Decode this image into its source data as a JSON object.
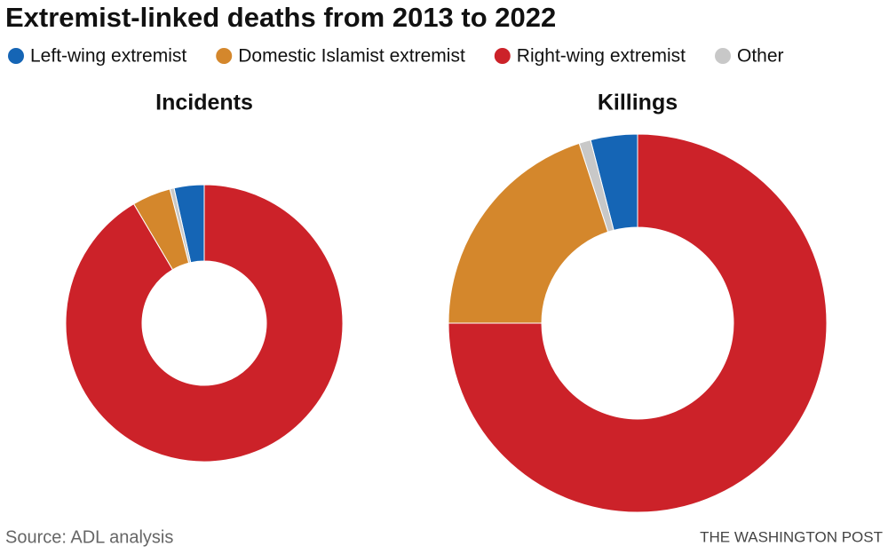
{
  "title": "Extremist-linked deaths from 2013 to 2022",
  "legend": [
    {
      "name": "Left-wing extremist",
      "color": "#1565b5"
    },
    {
      "name": "Domestic Islamist extremist",
      "color": "#d4872c"
    },
    {
      "name": "Right-wing extremist",
      "color": "#cc2229"
    },
    {
      "name": "Other",
      "color": "#c8c8c8"
    }
  ],
  "chart_data": [
    {
      "type": "pie",
      "title": "Incidents",
      "values": [
        3.5,
        0.5,
        4.5,
        91.5
      ],
      "colors": [
        "#1565b5",
        "#c8c8c8",
        "#d4872c",
        "#cc2229"
      ],
      "direction": "counterclockwise"
    },
    {
      "type": "pie",
      "title": "Killings",
      "values": [
        4,
        1,
        20,
        75
      ],
      "colors": [
        "#1565b5",
        "#c8c8c8",
        "#d4872c",
        "#cc2229"
      ],
      "direction": "counterclockwise"
    }
  ],
  "source": "Source: ADL analysis",
  "credit": "THE WASHINGTON POST"
}
